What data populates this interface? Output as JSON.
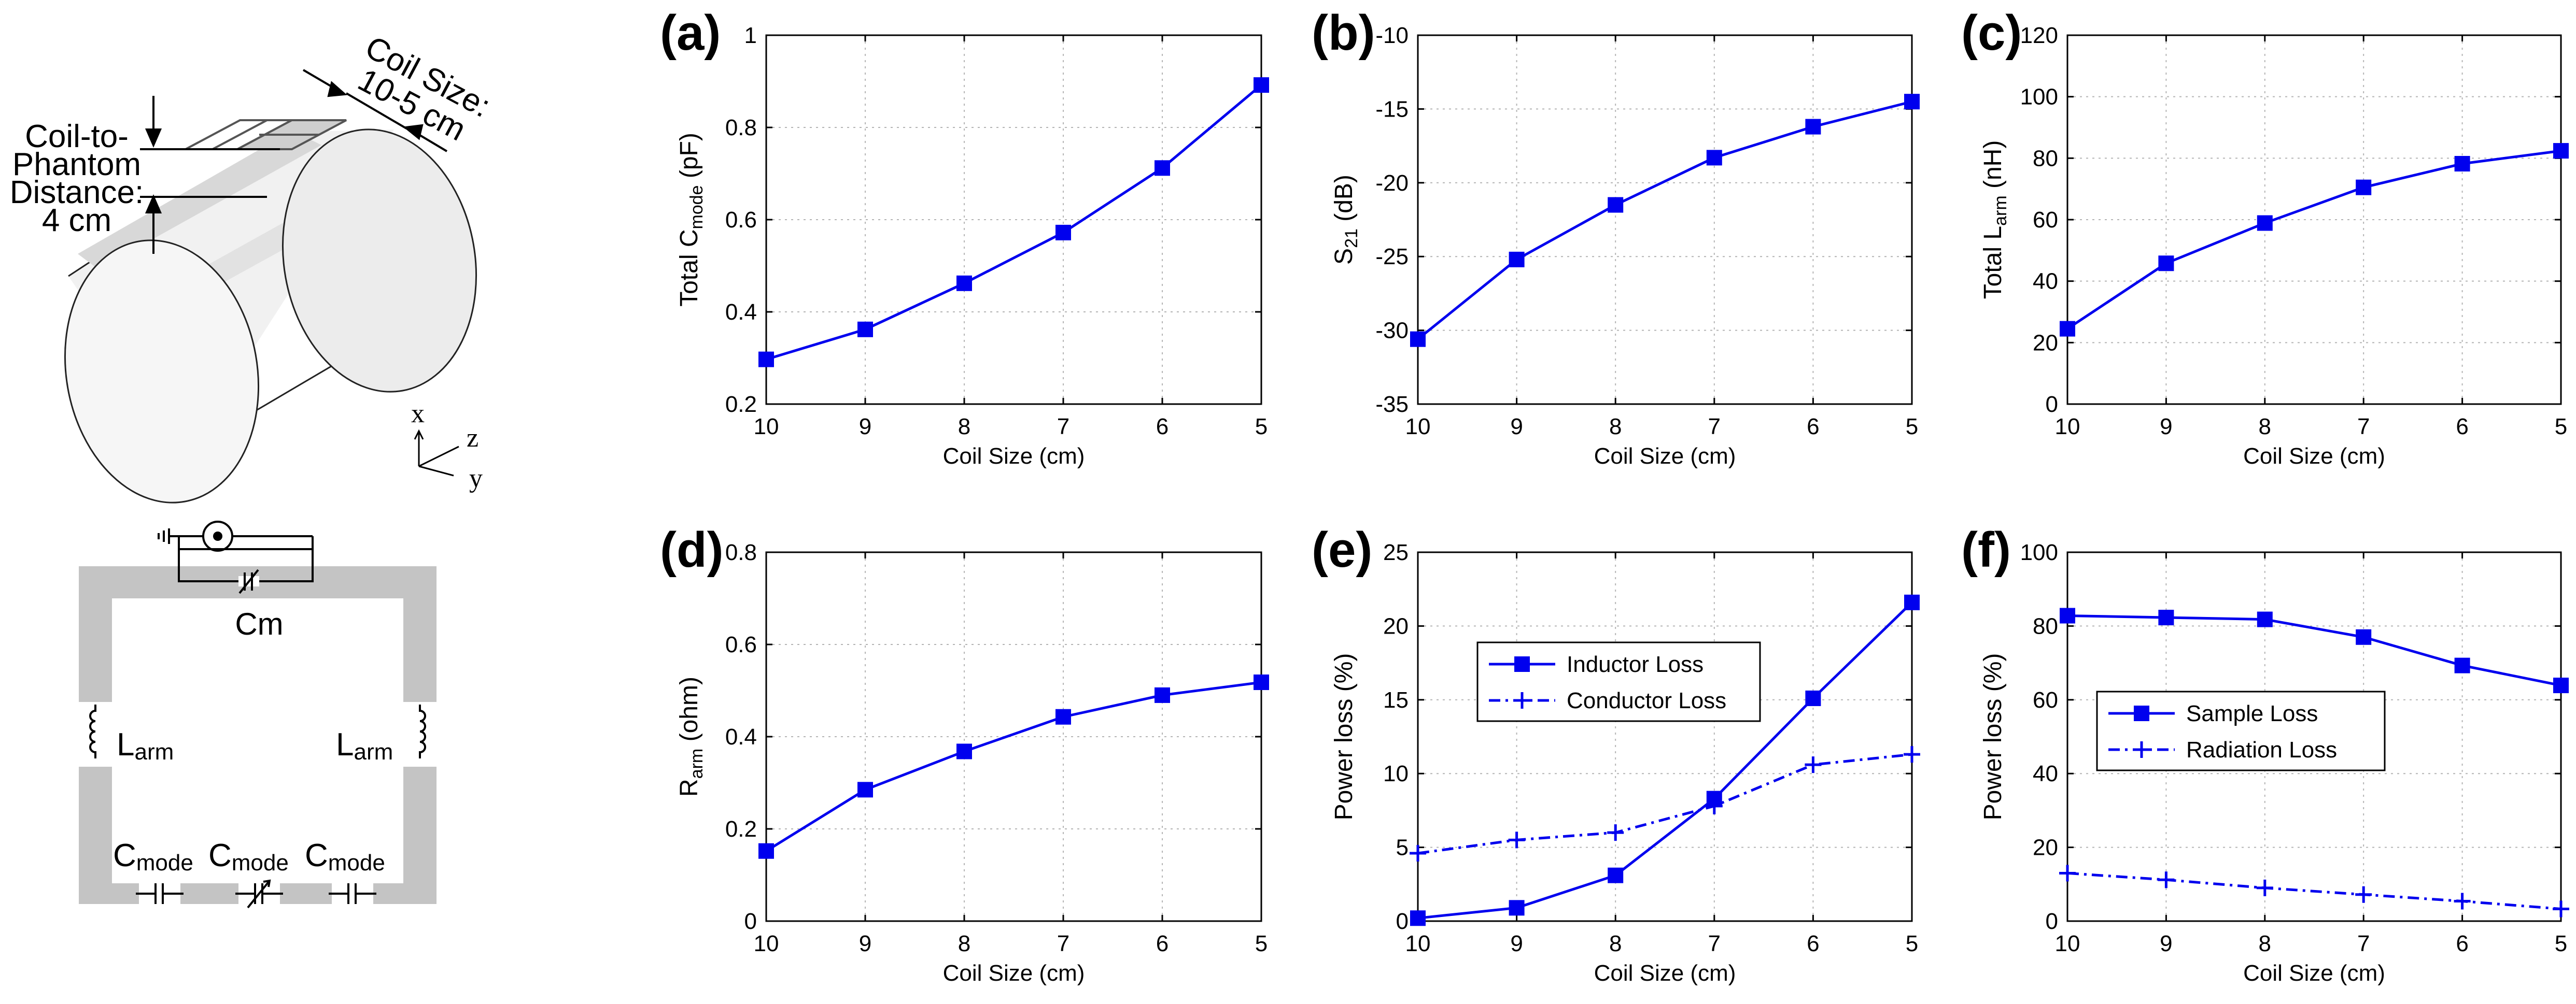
{
  "colors": {
    "series": "#0000ee",
    "grid": "#b4b4b4",
    "gray": "#c4c4c4",
    "axis": "#000000"
  },
  "schematic": {
    "coil_size": "Coil Size:",
    "coil_size_range": "10-5 cm",
    "distance": [
      "Coil-to-",
      "Phantom",
      "Distance:",
      "4 cm"
    ],
    "axes": [
      "x",
      "z",
      "y"
    ],
    "cm": "Cm",
    "larm_base": "L",
    "larm_sub": "arm",
    "cmode_base": "C",
    "cmode_sub": "mode"
  },
  "chart_data": [
    {
      "panel": "(a)",
      "type": "line",
      "x": [
        10,
        9,
        8,
        7,
        6,
        5
      ],
      "xticks": [
        "10",
        "9",
        "8",
        "7",
        "6",
        "5"
      ],
      "ylim": [
        0.2,
        1
      ],
      "yticks": [
        "0.2",
        "0.4",
        "0.6",
        "0.8",
        "1"
      ],
      "ylabel": {
        "pre": "Total C",
        "sub": "mode",
        "post": " (pF)"
      },
      "xlabel": "Coil Size (cm)",
      "series": [
        {
          "name": "Total Cmode",
          "style": "solid-square",
          "values": [
            0.297,
            0.362,
            0.462,
            0.572,
            0.712,
            0.892
          ]
        }
      ]
    },
    {
      "panel": "(b)",
      "type": "line",
      "x": [
        10,
        9,
        8,
        7,
        6,
        5
      ],
      "xticks": [
        "10",
        "9",
        "8",
        "7",
        "6",
        "5"
      ],
      "ylim": [
        -35,
        -10
      ],
      "yticks": [
        "-35",
        "-30",
        "-25",
        "-20",
        "-15",
        "-10"
      ],
      "ylabel": {
        "pre": "S",
        "sub": "21",
        "post": " (dB)"
      },
      "xlabel": "Coil Size (cm)",
      "series": [
        {
          "name": "S21",
          "style": "solid-square",
          "values": [
            -30.6,
            -25.2,
            -21.5,
            -18.3,
            -16.2,
            -14.5
          ]
        }
      ]
    },
    {
      "panel": "(c)",
      "type": "line",
      "x": [
        10,
        9,
        8,
        7,
        6,
        5
      ],
      "xticks": [
        "10",
        "9",
        "8",
        "7",
        "6",
        "5"
      ],
      "ylim": [
        0,
        120
      ],
      "yticks": [
        "0",
        "20",
        "40",
        "60",
        "80",
        "100",
        "120"
      ],
      "ylabel": {
        "pre": "Total L",
        "sub": "arm",
        "post": " (nH)"
      },
      "xlabel": "Coil Size (cm)",
      "series": [
        {
          "name": "Total Larm",
          "style": "solid-square",
          "values": [
            24.5,
            45.8,
            58.9,
            70.5,
            78.2,
            82.4
          ]
        }
      ]
    },
    {
      "panel": "(d)",
      "type": "line",
      "x": [
        10,
        9,
        8,
        7,
        6,
        5
      ],
      "xticks": [
        "10",
        "9",
        "8",
        "7",
        "6",
        "5"
      ],
      "ylim": [
        0,
        0.8
      ],
      "yticks": [
        "0",
        "0.2",
        "0.4",
        "0.6",
        "0.8"
      ],
      "ylabel": {
        "pre": "R",
        "sub": "arm",
        "post": " (ohm)"
      },
      "xlabel": "Coil Size (cm)",
      "series": [
        {
          "name": "Rarm",
          "style": "solid-square",
          "values": [
            0.152,
            0.285,
            0.368,
            0.443,
            0.49,
            0.518
          ]
        }
      ]
    },
    {
      "panel": "(e)",
      "type": "line",
      "x": [
        10,
        9,
        8,
        7,
        6,
        5
      ],
      "xticks": [
        "10",
        "9",
        "8",
        "7",
        "6",
        "5"
      ],
      "ylim": [
        0,
        25
      ],
      "yticks": [
        "0",
        "5",
        "10",
        "15",
        "20",
        "25"
      ],
      "ylabel": {
        "pre": "Power loss (%)",
        "sub": "",
        "post": ""
      },
      "xlabel": "Coil Size (cm)",
      "legend": "top-left",
      "series": [
        {
          "name": "Inductor Loss",
          "style": "solid-square",
          "values": [
            0.2,
            0.9,
            3.1,
            8.3,
            15.1,
            21.6
          ]
        },
        {
          "name": "Conductor Loss",
          "style": "dashdot-plus",
          "values": [
            4.6,
            5.5,
            6.0,
            7.8,
            10.6,
            11.3
          ]
        }
      ]
    },
    {
      "panel": "(f)",
      "type": "line",
      "x": [
        10,
        9,
        8,
        7,
        6,
        5
      ],
      "xticks": [
        "10",
        "9",
        "8",
        "7",
        "6",
        "5"
      ],
      "ylim": [
        0,
        100
      ],
      "yticks": [
        "0",
        "20",
        "40",
        "60",
        "80",
        "100"
      ],
      "ylabel": {
        "pre": "Power loss (%)",
        "sub": "",
        "post": ""
      },
      "xlabel": "Coil Size (cm)",
      "legend": "center-left",
      "series": [
        {
          "name": "Sample Loss",
          "style": "solid-square",
          "values": [
            82.8,
            82.3,
            81.8,
            77.0,
            69.3,
            63.9
          ]
        },
        {
          "name": "Radiation Loss",
          "style": "dashdot-plus",
          "values": [
            13.0,
            11.2,
            9.0,
            7.2,
            5.4,
            3.3
          ]
        }
      ]
    }
  ]
}
